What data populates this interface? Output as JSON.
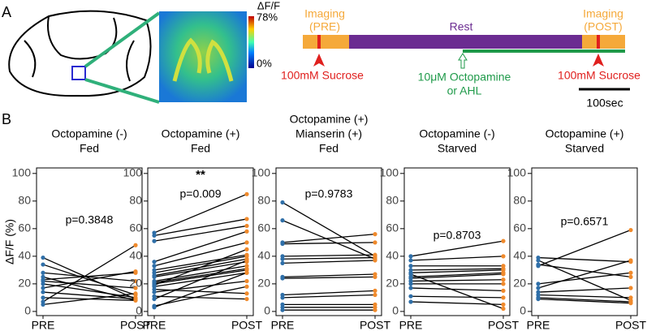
{
  "panel_a": {
    "label": "A",
    "colorbar": {
      "title": "ΔF/F",
      "max_label": "78%",
      "min_label": "0%"
    },
    "timeline": {
      "imaging_pre": [
        "Imaging",
        "(PRE)"
      ],
      "rest": "Rest",
      "imaging_post": [
        "Imaging",
        "(POST)"
      ],
      "stim_pre": "100mM Sucrose",
      "drug": [
        "10μM Octopamine",
        "or AHL"
      ],
      "stim_post": "100mM Sucrose",
      "scale_bar": "100sec"
    }
  },
  "panel_b": {
    "label": "B"
  },
  "chart_data": [
    {
      "type": "paired",
      "title": [
        "Octopamine (-)",
        "Fed"
      ],
      "ylabel": "ΔF/F (%)",
      "categories": [
        "PRE",
        "POST"
      ],
      "pre": [
        39,
        34,
        28,
        25,
        23,
        22,
        20,
        17,
        14,
        10,
        7,
        5
      ],
      "post": [
        9,
        12,
        22,
        8,
        28,
        17,
        10,
        29,
        9,
        8,
        48,
        13
      ],
      "pre_color": "#2f6fa8",
      "post_color": "#f08a2c",
      "annotation": "p=0.3848",
      "ylim": [
        -3,
        104
      ],
      "yticks": [
        0,
        20,
        40,
        60,
        80,
        100
      ]
    },
    {
      "type": "paired",
      "title": [
        "Octopamine (+)",
        "Fed"
      ],
      "categories": [
        "PRE",
        "POST"
      ],
      "pre": [
        57,
        55,
        51,
        36,
        33,
        30,
        28,
        26,
        25,
        22,
        21,
        20,
        19,
        18,
        16,
        14,
        11,
        9,
        4,
        3
      ],
      "post": [
        85,
        67,
        62,
        58,
        50,
        41,
        40,
        38,
        36,
        33,
        31,
        30,
        45,
        28,
        13,
        22,
        9,
        37,
        18,
        28
      ],
      "pre_color": "#2f6fa8",
      "post_color": "#f08a2c",
      "annotation": "p=0.009",
      "significance": "**",
      "ylim": [
        -3,
        104
      ],
      "yticks": [
        0,
        20,
        40,
        60,
        80,
        100
      ]
    },
    {
      "type": "paired",
      "title": [
        "Octopamine (+)",
        "Mianserin (+)",
        "Fed"
      ],
      "categories": [
        "PRE",
        "POST"
      ],
      "pre": [
        79,
        66,
        50,
        49,
        40,
        38,
        35,
        25,
        24,
        12,
        10,
        5,
        3,
        1
      ],
      "post": [
        40,
        38,
        56,
        50,
        41,
        39,
        37,
        27,
        25,
        15,
        12,
        5,
        3,
        1
      ],
      "pre_color": "#2f6fa8",
      "post_color": "#f08a2c",
      "annotation": "p=0.9783",
      "ylim": [
        -3,
        104
      ],
      "yticks": [
        0,
        20,
        40,
        60,
        80,
        100
      ]
    },
    {
      "type": "paired",
      "title": [
        "Octopamine (-)",
        "Starved"
      ],
      "categories": [
        "PRE",
        "POST"
      ],
      "pre": [
        40,
        37,
        33,
        30,
        28,
        27,
        25,
        24,
        22,
        20,
        17,
        11,
        7
      ],
      "post": [
        51,
        40,
        33,
        31,
        30,
        2,
        28,
        27,
        23,
        20,
        15,
        10,
        5
      ],
      "pre_color": "#2f6fa8",
      "post_color": "#f08a2c",
      "annotation": "p=0.8703",
      "ylim": [
        -3,
        104
      ],
      "yticks": [
        0,
        20,
        40,
        60,
        80,
        100
      ]
    },
    {
      "type": "paired",
      "title": [
        "Octopamine (+)",
        "Starved"
      ],
      "categories": [
        "PRE",
        "POST"
      ],
      "pre": [
        39,
        37,
        34,
        33,
        20,
        17,
        14,
        12,
        10,
        9
      ],
      "post": [
        36,
        8,
        25,
        59,
        28,
        37,
        17,
        10,
        7,
        6
      ],
      "pre_color": "#2f6fa8",
      "post_color": "#f08a2c",
      "annotation": "p=0.6571",
      "ylim": [
        -3,
        104
      ],
      "yticks": [
        0,
        20,
        40,
        60,
        80,
        100
      ]
    }
  ]
}
